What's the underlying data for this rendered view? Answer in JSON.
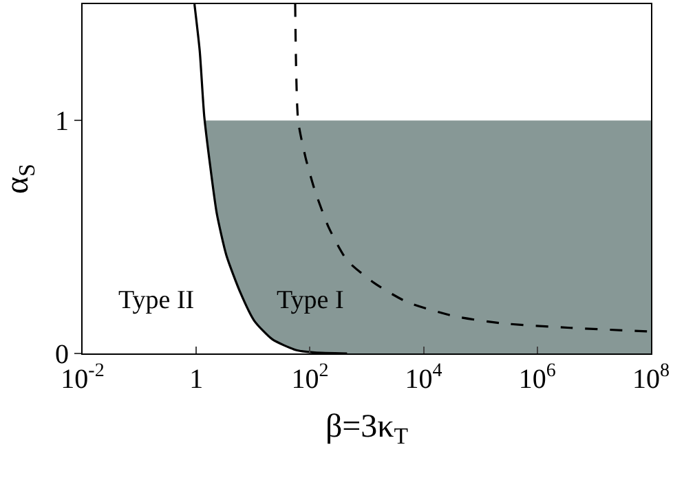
{
  "chart_data": {
    "type": "line",
    "xlabel": "β=3κ$_{T}$",
    "ylabel": "α$_{S}$",
    "log": "x",
    "xlim": [
      0.01,
      100000000
    ],
    "ylim": [
      0,
      1.5
    ],
    "xticks": [
      {
        "value": 0.01,
        "label": "10$^{-2}$"
      },
      {
        "value": 1,
        "label": "1"
      },
      {
        "value": 100,
        "label": "10$^{2}$"
      },
      {
        "value": 10000,
        "label": "10$^{4}$"
      },
      {
        "value": 1000000,
        "label": "10$^{6}$"
      },
      {
        "value": 100000000,
        "label": "10$^{8}$"
      }
    ],
    "yticks": [
      0,
      1
    ],
    "series": [
      {
        "color": "#000000",
        "line_style": "solid",
        "x": [
          0.93,
          1.15,
          1.38,
          1.77,
          2.3,
          3.4,
          6,
          10.5,
          22,
          58,
          122,
          450
        ],
        "values": [
          1.5,
          1.3,
          1.02,
          0.8,
          0.6,
          0.42,
          0.26,
          0.14,
          0.06,
          0.014,
          0.004,
          0
        ]
      },
      {
        "color": "#000000",
        "line_style": "dashed",
        "x": [
          55,
          62,
          84,
          122,
          215,
          450,
          1400,
          5200,
          35000,
          230000,
          3800000,
          100000000
        ],
        "values": [
          1.5,
          1.0,
          0.84,
          0.7,
          0.54,
          0.4,
          0.3,
          0.22,
          0.16,
          0.13,
          0.11,
          0.094
        ]
      }
    ],
    "bands": [
      {
        "axis": "y",
        "from": 0,
        "to": 1,
        "color": "#879896"
      }
    ],
    "annotations": [
      "Type II",
      "Type I"
    ]
  }
}
